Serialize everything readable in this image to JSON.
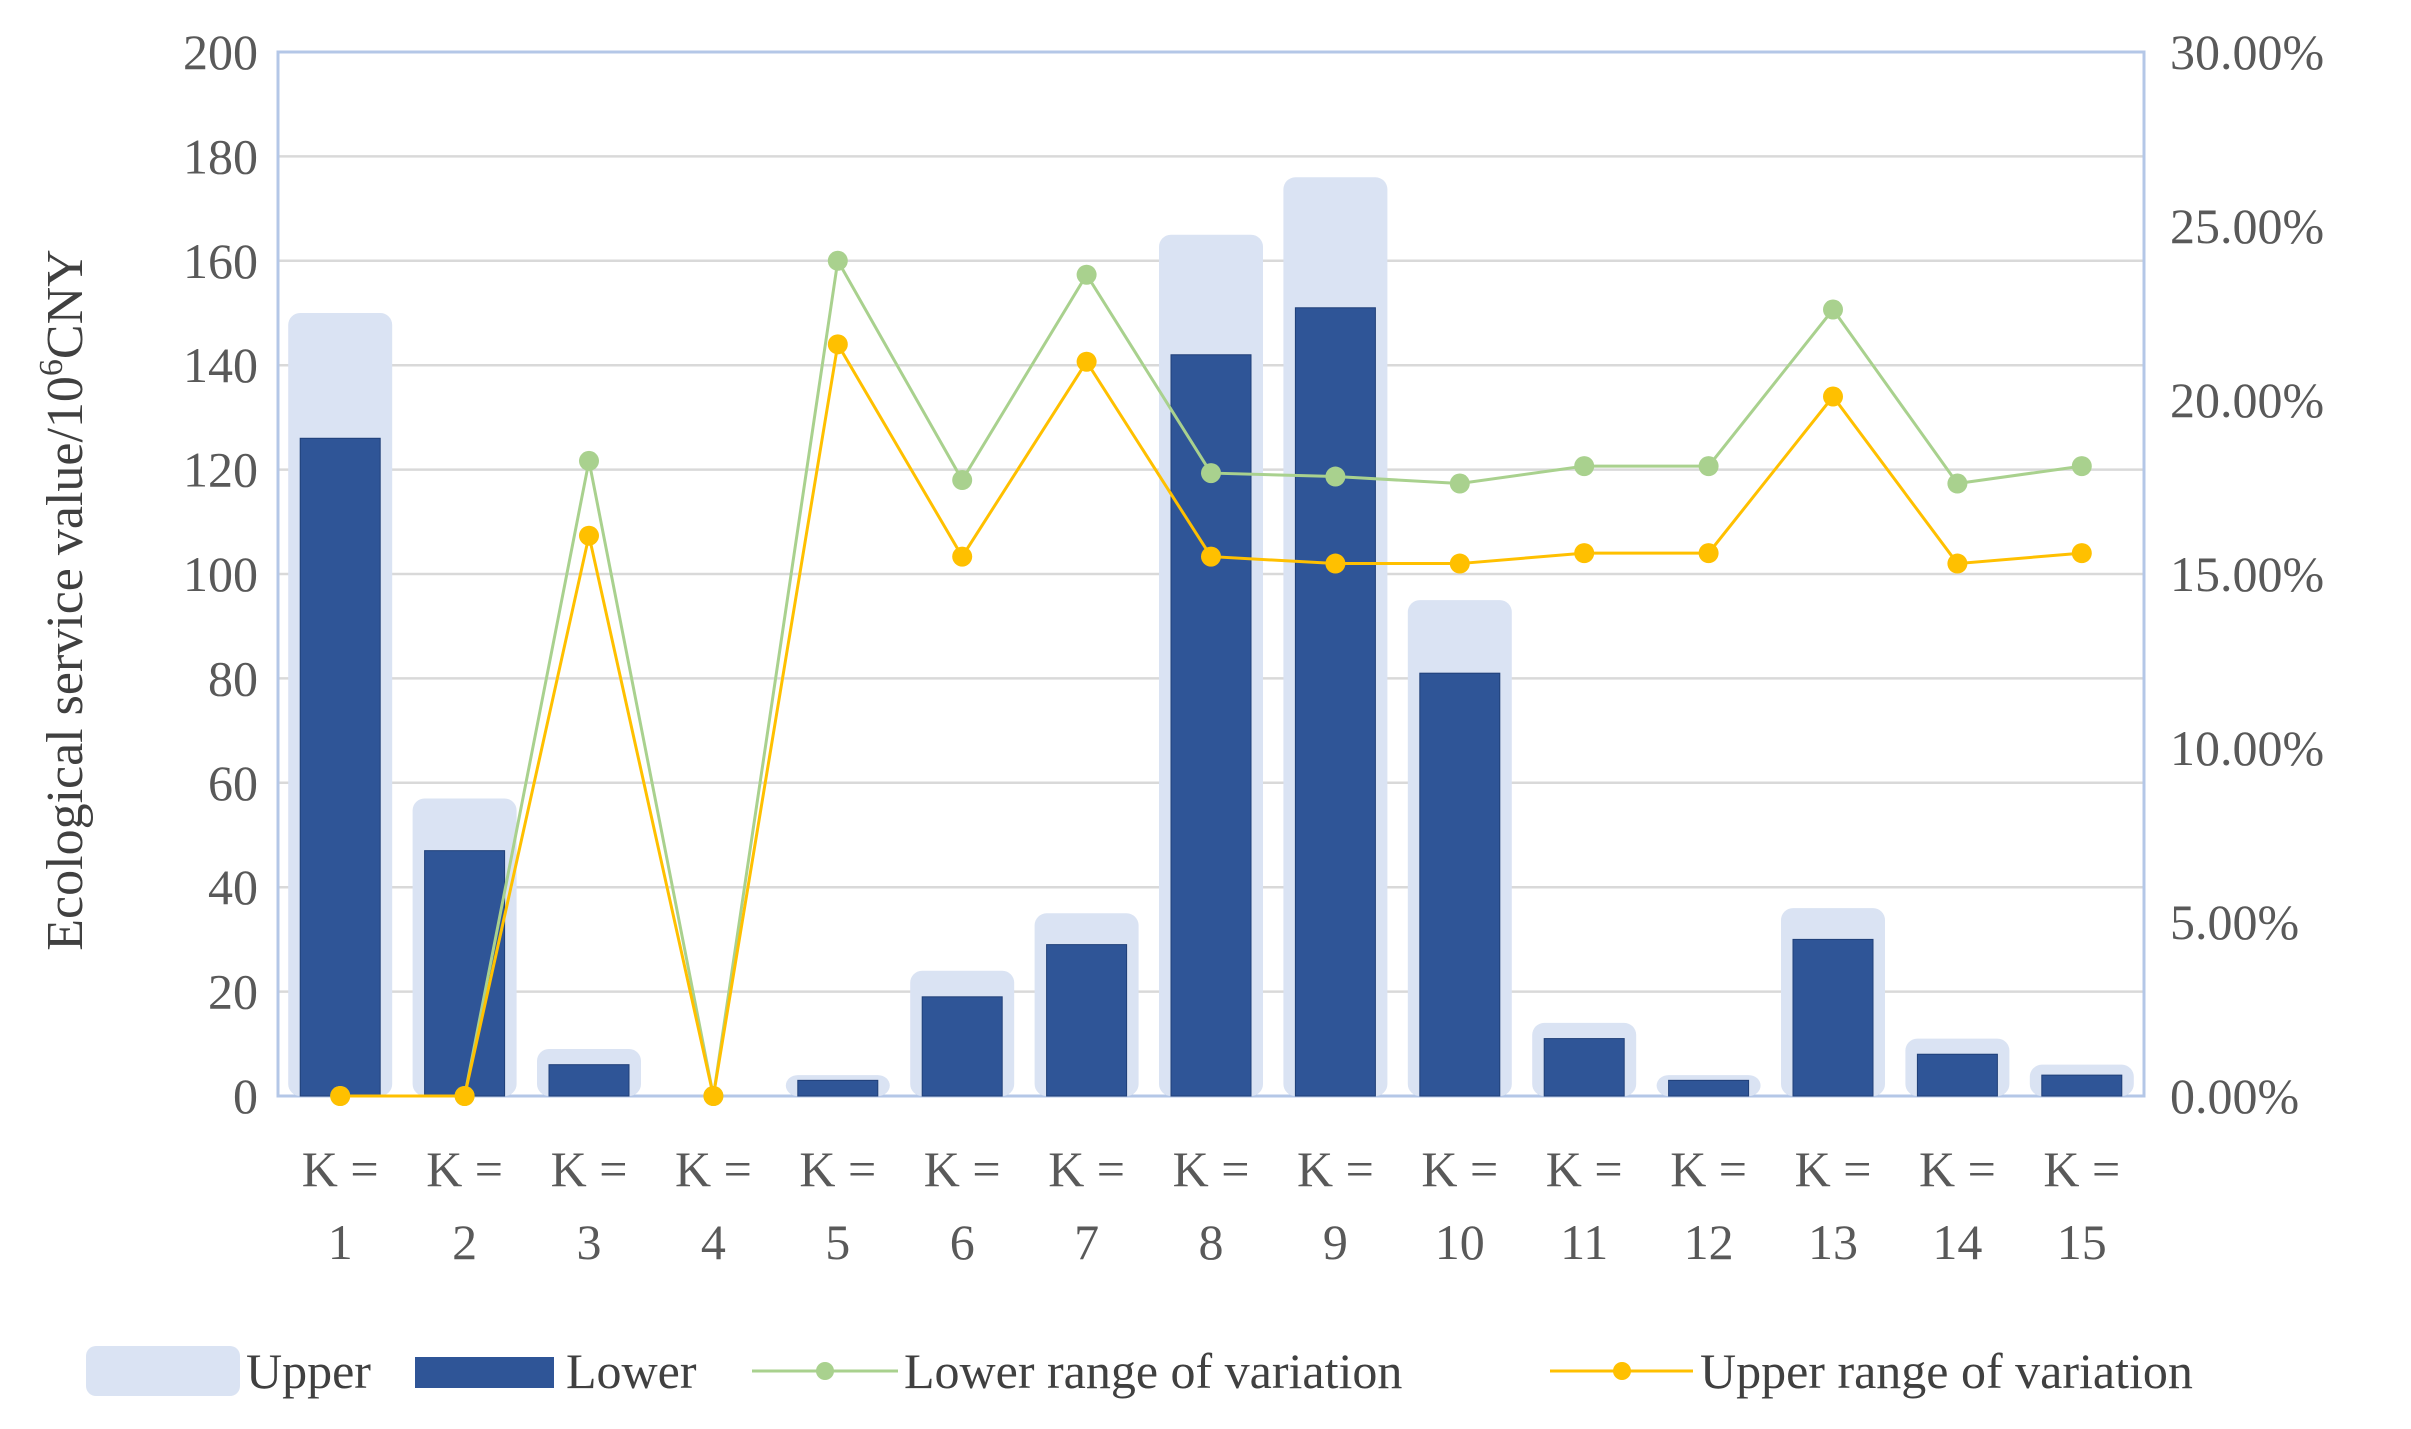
{
  "chart_data": {
    "type": "bar",
    "categories": [
      "K = 1",
      "K = 2",
      "K = 3",
      "K = 4",
      "K = 5",
      "K = 6",
      "K = 7",
      "K = 8",
      "K = 9",
      "K = 10",
      "K = 11",
      "K = 12",
      "K = 13",
      "K = 14",
      "K = 15"
    ],
    "category_lines": [
      [
        "K =",
        "1"
      ],
      [
        "K =",
        "2"
      ],
      [
        "K =",
        "3"
      ],
      [
        "K =",
        "4"
      ],
      [
        "K =",
        "5"
      ],
      [
        "K =",
        "6"
      ],
      [
        "K =",
        "7"
      ],
      [
        "K =",
        "8"
      ],
      [
        "K =",
        "9"
      ],
      [
        "K =",
        "10"
      ],
      [
        "K =",
        "11"
      ],
      [
        "K =",
        "12"
      ],
      [
        "K =",
        "13"
      ],
      [
        "K =",
        "14"
      ],
      [
        "K =",
        "15"
      ]
    ],
    "series": [
      {
        "name": "Upper",
        "type": "bar",
        "axis": "left",
        "color": "#dae3f3",
        "values": [
          150,
          57,
          9,
          0,
          4,
          24,
          35,
          165,
          176,
          95,
          14,
          4,
          36,
          11,
          6
        ]
      },
      {
        "name": "Lower",
        "type": "bar",
        "axis": "left",
        "color": "#2f5597",
        "values": [
          126,
          47,
          6,
          0,
          3,
          19,
          29,
          142,
          151,
          81,
          11,
          3,
          30,
          8,
          4
        ]
      },
      {
        "name": "Lower range of variation",
        "type": "line",
        "axis": "right",
        "color": "#a9d18e",
        "values": [
          0,
          0,
          18.25,
          0,
          24.0,
          17.7,
          23.6,
          17.9,
          17.8,
          17.6,
          18.1,
          18.1,
          22.6,
          17.6,
          18.1
        ]
      },
      {
        "name": "Upper range of variation",
        "type": "line",
        "axis": "right",
        "color": "#ffc000",
        "values": [
          0,
          0,
          16.1,
          0,
          21.6,
          15.5,
          21.1,
          15.5,
          15.3,
          15.3,
          15.6,
          15.6,
          20.1,
          15.3,
          15.6
        ]
      }
    ],
    "title": "",
    "xlabel": "",
    "ylabel": "Ecological service value/10⁶CNY",
    "ylabel_base": "Ecological service value/10",
    "ylabel_sup": "6",
    "ylabel_unit": "CNY",
    "ylim": [
      0,
      200
    ],
    "y_ticks": [
      0,
      20,
      40,
      60,
      80,
      100,
      120,
      140,
      160,
      180,
      200
    ],
    "y2lim": [
      0,
      30
    ],
    "y2_ticks": [
      0,
      5,
      10,
      15,
      20,
      25,
      30
    ],
    "y2_tick_labels": [
      "0.00%",
      "5.00%",
      "10.00%",
      "15.00%",
      "20.00%",
      "25.00%",
      "30.00%"
    ],
    "grid": true,
    "legend_position": "bottom",
    "legend": [
      "Upper",
      "Lower",
      "Lower range of variation",
      "Upper range of variation"
    ]
  }
}
